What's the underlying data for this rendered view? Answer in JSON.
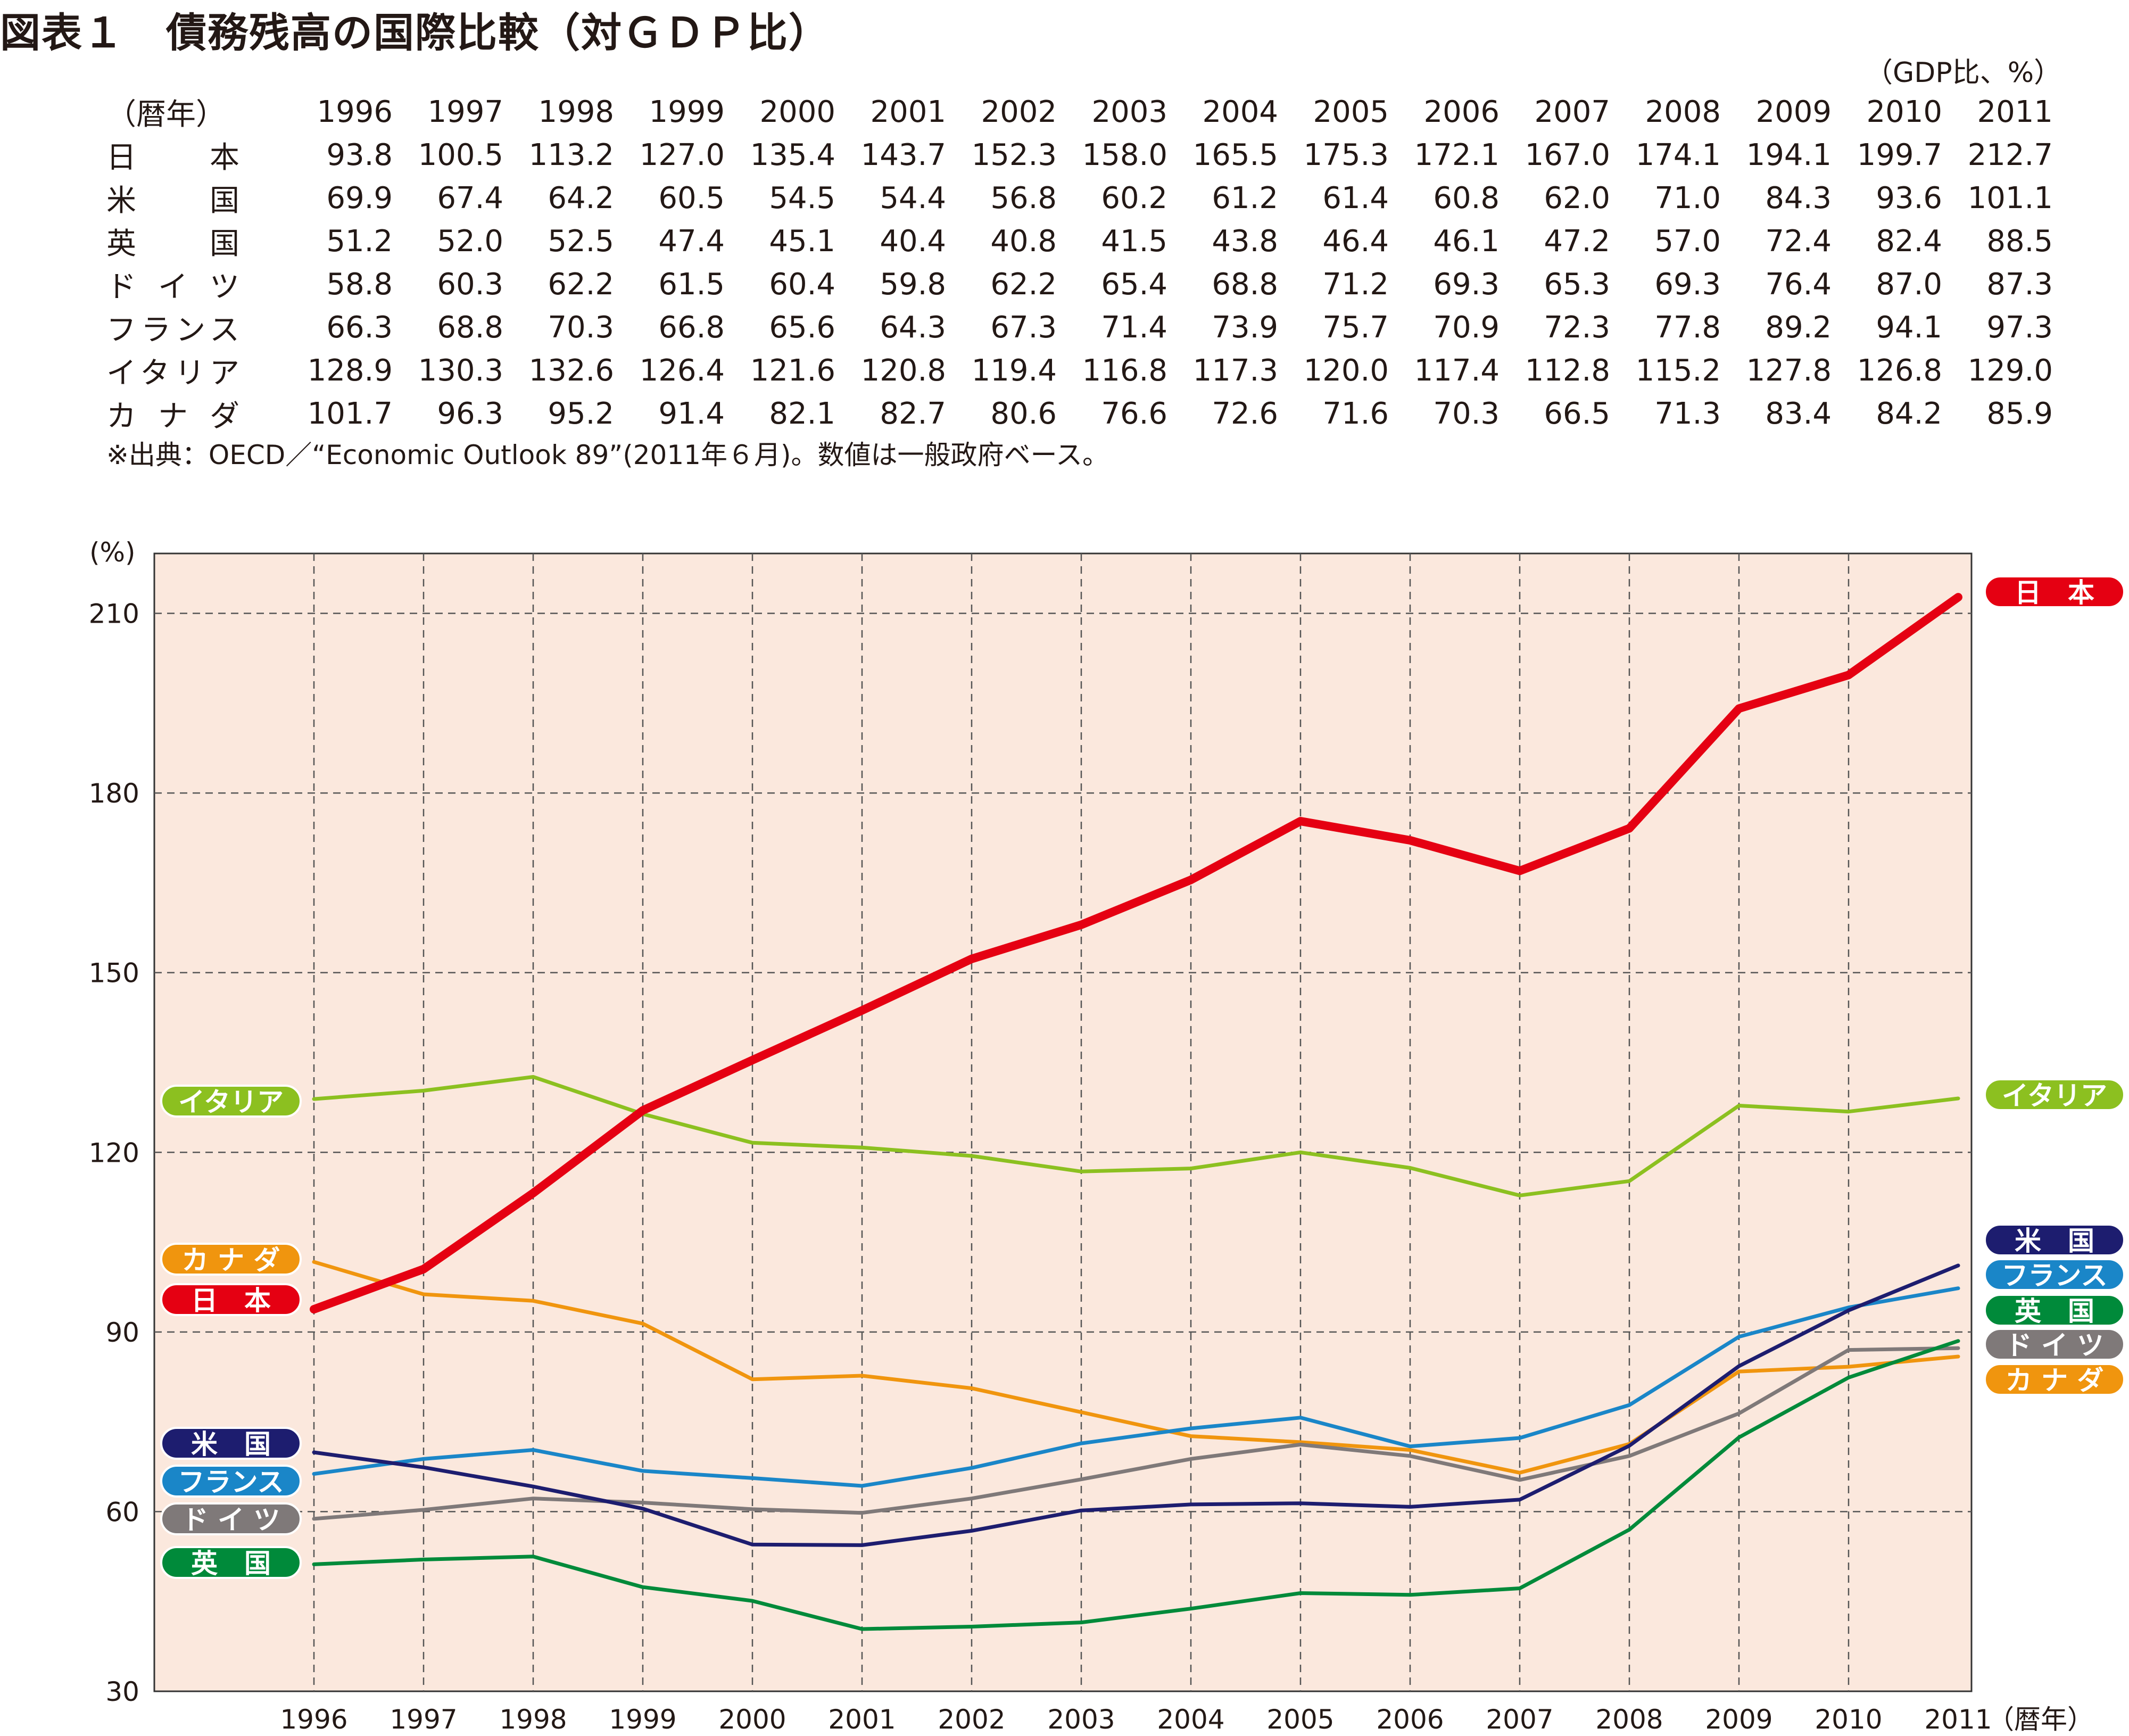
{
  "title": "図表１　債務残高の国際比較（対ＧＤＰ比）",
  "unit_note": "（GDP比、%）",
  "table": {
    "corner_label": "（暦年）",
    "years": [
      "1996",
      "1997",
      "1998",
      "1999",
      "2000",
      "2001",
      "2002",
      "2003",
      "2004",
      "2005",
      "2006",
      "2007",
      "2008",
      "2009",
      "2010",
      "2011"
    ],
    "rows": [
      {
        "country": "日　本",
        "values": [
          "93.8",
          "100.5",
          "113.2",
          "127.0",
          "135.4",
          "143.7",
          "152.3",
          "158.0",
          "165.5",
          "175.3",
          "172.1",
          "167.0",
          "174.1",
          "194.1",
          "199.7",
          "212.7"
        ]
      },
      {
        "country": "米　国",
        "values": [
          "69.9",
          "67.4",
          "64.2",
          "60.5",
          "54.5",
          "54.4",
          "56.8",
          "60.2",
          "61.2",
          "61.4",
          "60.8",
          "62.0",
          "71.0",
          "84.3",
          "93.6",
          "101.1"
        ]
      },
      {
        "country": "英　国",
        "values": [
          "51.2",
          "52.0",
          "52.5",
          "47.4",
          "45.1",
          "40.4",
          "40.8",
          "41.5",
          "43.8",
          "46.4",
          "46.1",
          "47.2",
          "57.0",
          "72.4",
          "82.4",
          "88.5"
        ]
      },
      {
        "country": "ドイツ",
        "values": [
          "58.8",
          "60.3",
          "62.2",
          "61.5",
          "60.4",
          "59.8",
          "62.2",
          "65.4",
          "68.8",
          "71.2",
          "69.3",
          "65.3",
          "69.3",
          "76.4",
          "87.0",
          "87.3"
        ]
      },
      {
        "country": "フランス",
        "values": [
          "66.3",
          "68.8",
          "70.3",
          "66.8",
          "65.6",
          "64.3",
          "67.3",
          "71.4",
          "73.9",
          "75.7",
          "70.9",
          "72.3",
          "77.8",
          "89.2",
          "94.1",
          "97.3"
        ]
      },
      {
        "country": "イタリア",
        "values": [
          "128.9",
          "130.3",
          "132.6",
          "126.4",
          "121.6",
          "120.8",
          "119.4",
          "116.8",
          "117.3",
          "120.0",
          "117.4",
          "112.8",
          "115.2",
          "127.8",
          "126.8",
          "129.0"
        ]
      },
      {
        "country": "カナダ",
        "values": [
          "101.7",
          "96.3",
          "95.2",
          "91.4",
          "82.1",
          "82.7",
          "80.6",
          "76.6",
          "72.6",
          "71.6",
          "70.3",
          "66.5",
          "71.3",
          "83.4",
          "84.2",
          "85.9"
        ]
      }
    ]
  },
  "source_note": "※出典：OECD／“Economic Outlook 89”(2011年６月)。数値は一般政府ベース。",
  "chart_data": {
    "type": "line",
    "ylabel": "(%)",
    "xlabel": "（暦年）",
    "x": [
      1996,
      1997,
      1998,
      1999,
      2000,
      2001,
      2002,
      2003,
      2004,
      2005,
      2006,
      2007,
      2008,
      2009,
      2010,
      2011
    ],
    "ylim": [
      30,
      220
    ],
    "yticks": [
      30,
      60,
      90,
      120,
      150,
      180,
      210
    ],
    "grid": true,
    "background": "#fbe8dd",
    "series": [
      {
        "name": "日　本",
        "color": "#e50012",
        "width": "thick",
        "values": [
          93.8,
          100.5,
          113.2,
          127.0,
          135.4,
          143.7,
          152.3,
          158.0,
          165.5,
          175.3,
          172.1,
          167.0,
          174.1,
          194.1,
          199.7,
          212.7
        ],
        "left_label": "日　本",
        "right_label": "日　本"
      },
      {
        "name": "米　国",
        "color": "#1d1d6f",
        "values": [
          69.9,
          67.4,
          64.2,
          60.5,
          54.5,
          54.4,
          56.8,
          60.2,
          61.2,
          61.4,
          60.8,
          62.0,
          71.0,
          84.3,
          93.6,
          101.1
        ],
        "left_label": "米　国",
        "right_label": "米　国"
      },
      {
        "name": "英　国",
        "color": "#008a3a",
        "values": [
          51.2,
          52.0,
          52.5,
          47.4,
          45.1,
          40.4,
          40.8,
          41.5,
          43.8,
          46.4,
          46.1,
          47.2,
          57.0,
          72.4,
          82.4,
          88.5
        ],
        "left_label": "英　国",
        "right_label": "英　国"
      },
      {
        "name": "ドイツ",
        "color": "#7f7979",
        "values": [
          58.8,
          60.3,
          62.2,
          61.5,
          60.4,
          59.8,
          62.2,
          65.4,
          68.8,
          71.2,
          69.3,
          65.3,
          69.3,
          76.4,
          87.0,
          87.3
        ],
        "left_label": "ド イ ツ",
        "right_label": "ド イ ツ"
      },
      {
        "name": "フランス",
        "color": "#1a86c8",
        "values": [
          66.3,
          68.8,
          70.3,
          66.8,
          65.6,
          64.3,
          67.3,
          71.4,
          73.9,
          75.7,
          70.9,
          72.3,
          77.8,
          89.2,
          94.1,
          97.3
        ],
        "left_label": "フランス",
        "right_label": "フランス"
      },
      {
        "name": "イタリア",
        "color": "#8cc020",
        "values": [
          128.9,
          130.3,
          132.6,
          126.4,
          121.6,
          120.8,
          119.4,
          116.8,
          117.3,
          120.0,
          117.4,
          112.8,
          115.2,
          127.8,
          126.8,
          129.0
        ],
        "left_label": "イタリア",
        "right_label": "イタリア"
      },
      {
        "name": "カナダ",
        "color": "#f0950e",
        "values": [
          101.7,
          96.3,
          95.2,
          91.4,
          82.1,
          82.7,
          80.6,
          76.6,
          72.6,
          71.6,
          70.3,
          66.5,
          71.3,
          83.4,
          84.2,
          85.9
        ],
        "left_label": "カ ナ ダ",
        "right_label": "カ ナ ダ"
      }
    ]
  }
}
